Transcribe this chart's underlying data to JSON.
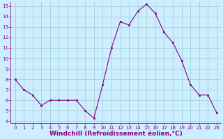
{
  "x": [
    0,
    1,
    2,
    3,
    4,
    5,
    6,
    7,
    8,
    9,
    10,
    11,
    12,
    13,
    14,
    15,
    16,
    17,
    18,
    19,
    20,
    21,
    22,
    23
  ],
  "y": [
    8.0,
    7.0,
    6.5,
    5.5,
    6.0,
    6.0,
    6.0,
    6.0,
    5.0,
    4.3,
    7.5,
    11.0,
    13.5,
    13.2,
    14.5,
    15.2,
    14.3,
    12.5,
    11.5,
    9.8,
    7.5,
    6.5,
    6.5,
    4.8
  ],
  "line_color": "#880088",
  "marker_color": "#880088",
  "bg_color": "#cceeff",
  "grid_color": "#99cccc",
  "xlabel": "Windchill (Refroidissement éolien,°C)",
  "xlabel_color": "#880088",
  "xlim": [
    -0.5,
    23.5
  ],
  "ylim": [
    3.8,
    15.4
  ],
  "yticks": [
    4,
    5,
    6,
    7,
    8,
    9,
    10,
    11,
    12,
    13,
    14,
    15
  ],
  "xticks": [
    0,
    1,
    2,
    3,
    4,
    5,
    6,
    7,
    8,
    9,
    10,
    11,
    12,
    13,
    14,
    15,
    16,
    17,
    18,
    19,
    20,
    21,
    22,
    23
  ],
  "tick_color": "#880088",
  "tick_fontsize": 5.0,
  "xlabel_fontsize": 6.5,
  "linewidth": 0.8,
  "markersize": 2.0
}
